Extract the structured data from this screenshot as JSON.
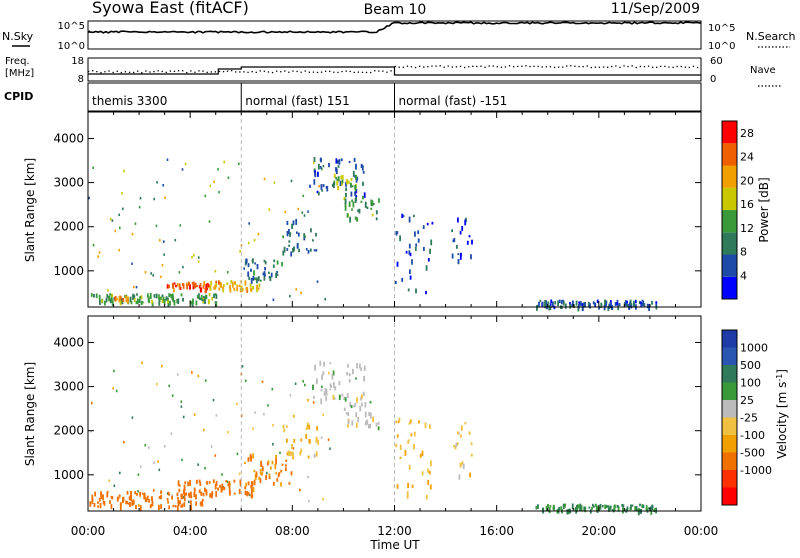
{
  "header": {
    "station": "Syowa East (fitACF)",
    "beam": "Beam 10",
    "date": "11/Sep/2009"
  },
  "top_panel": {
    "left_label": "N.Sky",
    "right_label": "N.Search",
    "left_ticks": [
      "10^5",
      "10^0"
    ],
    "right_ticks": [
      "10^5",
      "10^0"
    ]
  },
  "freq_panel": {
    "left_label": "Freq.",
    "left_unit": "[MHz]",
    "right_label": "Nave",
    "left_ticks": [
      "18",
      "8"
    ],
    "right_ticks": [
      "60",
      "0"
    ]
  },
  "cpid_panel": {
    "label": "CPID",
    "segments": [
      {
        "text": "themis 3300",
        "start_hour": 0,
        "end_hour": 6
      },
      {
        "text": "normal (fast) 151",
        "start_hour": 6,
        "end_hour": 12
      },
      {
        "text": "normal (fast) -151",
        "start_hour": 12,
        "end_hour": 24
      }
    ]
  },
  "colors": {
    "power_scale": [
      "#0000ff",
      "#1e4ba8",
      "#2f7a5a",
      "#3a9a3a",
      "#c8c800",
      "#f0a000",
      "#f06000",
      "#ff0000"
    ],
    "velocity_scale": [
      "#1e3ca8",
      "#2a55b0",
      "#2f7a5a",
      "#3a9a3a",
      "#bbbbbb",
      "#f0c040",
      "#f0a000",
      "#f07000",
      "#ff3000",
      "#ff0000"
    ]
  },
  "chart_data": [
    {
      "type": "heatmap",
      "title": "",
      "xlabel": "Time UT",
      "ylabel": "Slant Range [km]",
      "xlim": [
        0,
        24
      ],
      "ylim": [
        180,
        4600
      ],
      "x_ticks": [
        "00:00",
        "04:00",
        "08:00",
        "12:00",
        "16:00",
        "20:00",
        "00:00"
      ],
      "y_ticks": [
        1000,
        2000,
        3000,
        4000
      ],
      "colorbar": {
        "label": "Power [dB]",
        "ticks": [
          4,
          8,
          12,
          16,
          20,
          24,
          28
        ],
        "range": [
          0,
          30
        ]
      },
      "features": [
        {
          "t_start": 0.0,
          "t_end": 5.0,
          "range_start": 300,
          "range_end": 500,
          "value": 12
        },
        {
          "t_start": 1.0,
          "t_end": 1.6,
          "range_start": 350,
          "range_end": 450,
          "value": 22
        },
        {
          "t_start": 3.0,
          "t_end": 4.8,
          "range_start": 600,
          "range_end": 760,
          "value": 26
        },
        {
          "t_start": 4.5,
          "t_end": 6.7,
          "range_start": 600,
          "range_end": 800,
          "value": 20
        },
        {
          "t_start": 6.0,
          "t_end": 7.7,
          "range_start": 800,
          "range_end": 1300,
          "value": 8
        },
        {
          "t_start": 7.6,
          "t_end": 9.0,
          "range_start": 1400,
          "range_end": 2200,
          "value": 8
        },
        {
          "t_start": 8.6,
          "t_end": 10.8,
          "range_start": 2700,
          "range_end": 3600,
          "value": 6
        },
        {
          "t_start": 9.5,
          "t_end": 10.5,
          "range_start": 2900,
          "range_end": 3200,
          "value": 14
        },
        {
          "t_start": 10.0,
          "t_end": 11.4,
          "range_start": 2200,
          "range_end": 2700,
          "value": 12
        },
        {
          "t_start": 12.0,
          "t_end": 13.5,
          "range_start": 400,
          "range_end": 2300,
          "value": 5
        },
        {
          "t_start": 14.2,
          "t_end": 15.0,
          "range_start": 1200,
          "range_end": 2300,
          "value": 5
        },
        {
          "t_start": 17.5,
          "t_end": 22.3,
          "range_start": 200,
          "range_end": 350,
          "value": 6
        }
      ]
    },
    {
      "type": "heatmap",
      "title": "",
      "xlabel": "Time UT",
      "ylabel": "Slant Range [km]",
      "xlim": [
        0,
        24
      ],
      "ylim": [
        180,
        4600
      ],
      "x_ticks": [
        "00:00",
        "04:00",
        "08:00",
        "12:00",
        "16:00",
        "20:00",
        "00:00"
      ],
      "y_ticks": [
        1000,
        2000,
        3000,
        4000
      ],
      "colorbar": {
        "label": "Velocity [m s^-1]",
        "ticks": [
          "1000",
          "500",
          "100",
          "25",
          "-25",
          "-100",
          "-500",
          "-1000"
        ]
      },
      "features": [
        {
          "t_start": 0.0,
          "t_end": 4.5,
          "range_start": 300,
          "range_end": 650,
          "value": -200
        },
        {
          "t_start": 3.5,
          "t_end": 6.5,
          "range_start": 550,
          "range_end": 900,
          "value": -150
        },
        {
          "t_start": 6.0,
          "t_end": 8.0,
          "range_start": 700,
          "range_end": 1500,
          "value": -100
        },
        {
          "t_start": 7.6,
          "t_end": 9.0,
          "range_start": 1400,
          "range_end": 2200,
          "value": -50
        },
        {
          "t_start": 8.6,
          "t_end": 10.8,
          "range_start": 2700,
          "range_end": 3600,
          "value": 0
        },
        {
          "t_start": 10.0,
          "t_end": 11.4,
          "range_start": 2100,
          "range_end": 2700,
          "value": 0
        },
        {
          "t_start": 12.0,
          "t_end": 13.5,
          "range_start": 500,
          "range_end": 2300,
          "value": -60
        },
        {
          "t_start": 14.2,
          "t_end": 15.0,
          "range_start": 1000,
          "range_end": 2300,
          "value": -40
        },
        {
          "t_start": 17.5,
          "t_end": 22.3,
          "range_start": 200,
          "range_end": 350,
          "value": 100
        }
      ]
    }
  ]
}
